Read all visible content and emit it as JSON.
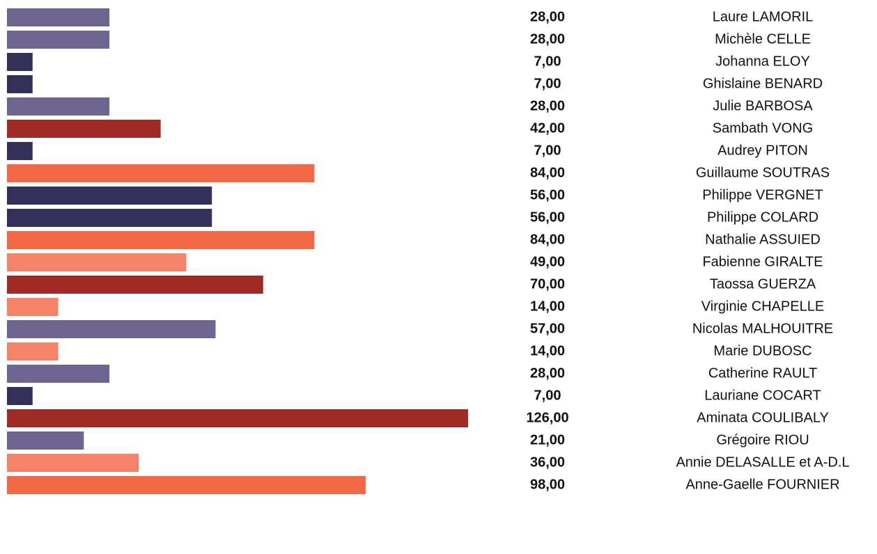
{
  "chart_data": {
    "type": "bar",
    "orientation": "horizontal",
    "categories": [
      "Laure LAMORIL",
      "Michèle CELLE",
      "Johanna ELOY",
      "Ghislaine BENARD",
      "Julie BARBOSA",
      "Sambath VONG",
      "Audrey PITON",
      "Guillaume SOUTRAS",
      "Philippe VERGNET",
      "Philippe COLARD",
      "Nathalie ASSUIED",
      "Fabienne GIRALTE",
      "Taossa GUERZA",
      "Virginie CHAPELLE",
      "Nicolas MALHOUITRE",
      "Marie DUBOSC",
      "Catherine RAULT",
      "Lauriane COCART",
      "Aminata COULIBALY",
      "Grégoire RIOU",
      "Annie DELASALLE et A-D.L",
      "Anne-Gaelle FOURNIER"
    ],
    "values": [
      28,
      28,
      7,
      7,
      28,
      42,
      7,
      84,
      56,
      56,
      84,
      49,
      70,
      14,
      57,
      14,
      28,
      7,
      126,
      21,
      36,
      98
    ],
    "value_labels": [
      "28,00",
      "28,00",
      "7,00",
      "7,00",
      "28,00",
      "42,00",
      "7,00",
      "84,00",
      "56,00",
      "56,00",
      "84,00",
      "49,00",
      "70,00",
      "14,00",
      "57,00",
      "14,00",
      "28,00",
      "7,00",
      "126,00",
      "21,00",
      "36,00",
      "98,00"
    ],
    "colors": [
      "#6e6690",
      "#6e6690",
      "#33305a",
      "#33305a",
      "#6e6690",
      "#a02a24",
      "#33305a",
      "#f26744",
      "#33305a",
      "#33305a",
      "#f26744",
      "#f48468",
      "#a02a24",
      "#f48468",
      "#6e6690",
      "#f48468",
      "#6e6690",
      "#33305a",
      "#a02a24",
      "#6e6690",
      "#f48468",
      "#f26744"
    ]
  }
}
